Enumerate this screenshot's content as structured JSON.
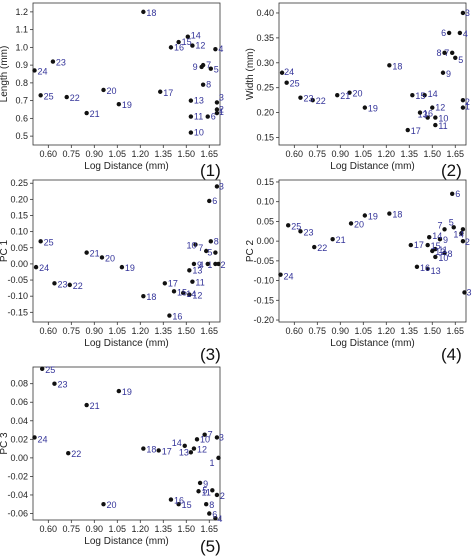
{
  "colors": {
    "point": "#111111",
    "point_label": "#333399",
    "axis": "#333333",
    "background": "#ffffff"
  },
  "chart_data": [
    {
      "type": "scatter",
      "panel": "(1)",
      "xlabel": "Log Distance (mm)",
      "ylabel": "Length (mm)",
      "xlim": [
        0.5,
        1.72
      ],
      "ylim": [
        0.45,
        1.25
      ],
      "grid": false,
      "xticks": [
        "0.60",
        "0.75",
        "0.90",
        "1.05",
        "1.20",
        "1.35",
        "1.50",
        "1.65"
      ],
      "yticks": [
        "0.5",
        "0.6",
        "0.7",
        "0.8",
        "0.9",
        "1.0",
        "1.1",
        "1.2"
      ],
      "points": [
        {
          "label": "1",
          "x": 1.7,
          "y": 0.63
        },
        {
          "label": "2",
          "x": 1.7,
          "y": 0.65
        },
        {
          "label": "3",
          "x": 1.7,
          "y": 0.69
        },
        {
          "label": "4",
          "x": 1.69,
          "y": 0.99
        },
        {
          "label": "5",
          "x": 1.66,
          "y": 0.88
        },
        {
          "label": "6",
          "x": 1.64,
          "y": 0.61
        },
        {
          "label": "7",
          "x": 1.61,
          "y": 0.9
        },
        {
          "label": "8",
          "x": 1.61,
          "y": 0.79
        },
        {
          "label": "9",
          "x": 1.6,
          "y": 0.89
        },
        {
          "label": "10",
          "x": 1.53,
          "y": 0.52
        },
        {
          "label": "11",
          "x": 1.53,
          "y": 0.61
        },
        {
          "label": "12",
          "x": 1.54,
          "y": 1.01
        },
        {
          "label": "13",
          "x": 1.53,
          "y": 0.7
        },
        {
          "label": "14",
          "x": 1.51,
          "y": 1.06
        },
        {
          "label": "15",
          "x": 1.45,
          "y": 1.03
        },
        {
          "label": "16",
          "x": 1.4,
          "y": 1.0
        },
        {
          "label": "17",
          "x": 1.33,
          "y": 0.75
        },
        {
          "label": "18",
          "x": 1.22,
          "y": 1.2
        },
        {
          "label": "19",
          "x": 1.06,
          "y": 0.68
        },
        {
          "label": "20",
          "x": 0.96,
          "y": 0.76
        },
        {
          "label": "21",
          "x": 0.85,
          "y": 0.63
        },
        {
          "label": "22",
          "x": 0.72,
          "y": 0.72
        },
        {
          "label": "23",
          "x": 0.63,
          "y": 0.92
        },
        {
          "label": "24",
          "x": 0.51,
          "y": 0.87
        },
        {
          "label": "25",
          "x": 0.55,
          "y": 0.73
        }
      ]
    },
    {
      "type": "scatter",
      "panel": "(2)",
      "xlabel": "Log Distance (mm)",
      "ylabel": "Width (mm)",
      "xlim": [
        0.5,
        1.72
      ],
      "ylim": [
        0.135,
        0.42
      ],
      "grid": false,
      "xticks": [
        "0.60",
        "0.75",
        "0.90",
        "1.05",
        "1.20",
        "1.35",
        "1.50",
        "1.65"
      ],
      "yticks": [
        "0.15",
        "0.20",
        "0.25",
        "0.30",
        "0.35",
        "0.40"
      ],
      "points": [
        {
          "label": "1",
          "x": 1.7,
          "y": 0.21
        },
        {
          "label": "2",
          "x": 1.7,
          "y": 0.225
        },
        {
          "label": "3",
          "x": 1.7,
          "y": 0.4
        },
        {
          "label": "4",
          "x": 1.68,
          "y": 0.36
        },
        {
          "label": "5",
          "x": 1.65,
          "y": 0.31
        },
        {
          "label": "6",
          "x": 1.61,
          "y": 0.36
        },
        {
          "label": "7",
          "x": 1.63,
          "y": 0.32
        },
        {
          "label": "8",
          "x": 1.58,
          "y": 0.32
        },
        {
          "label": "9",
          "x": 1.57,
          "y": 0.28
        },
        {
          "label": "10",
          "x": 1.52,
          "y": 0.19
        },
        {
          "label": "11",
          "x": 1.52,
          "y": 0.175
        },
        {
          "label": "12",
          "x": 1.5,
          "y": 0.21
        },
        {
          "label": "13",
          "x": 1.47,
          "y": 0.19
        },
        {
          "label": "14",
          "x": 1.45,
          "y": 0.235
        },
        {
          "label": "15",
          "x": 1.37,
          "y": 0.235
        },
        {
          "label": "16",
          "x": 1.42,
          "y": 0.2
        },
        {
          "label": "17",
          "x": 1.34,
          "y": 0.165
        },
        {
          "label": "18",
          "x": 1.22,
          "y": 0.295
        },
        {
          "label": "19",
          "x": 1.06,
          "y": 0.21
        },
        {
          "label": "20",
          "x": 0.96,
          "y": 0.24
        },
        {
          "label": "21",
          "x": 0.88,
          "y": 0.235
        },
        {
          "label": "22",
          "x": 0.72,
          "y": 0.225
        },
        {
          "label": "23",
          "x": 0.64,
          "y": 0.23
        },
        {
          "label": "24",
          "x": 0.52,
          "y": 0.28
        },
        {
          "label": "25",
          "x": 0.55,
          "y": 0.26
        }
      ]
    },
    {
      "type": "scatter",
      "panel": "(3)",
      "xlabel": "Log Distance (mm)",
      "ylabel": "PC 1",
      "xlim": [
        0.5,
        1.72
      ],
      "ylim": [
        -0.18,
        0.26
      ],
      "grid": false,
      "xticks": [
        "0.60",
        "0.75",
        "0.90",
        "1.05",
        "1.20",
        "1.35",
        "1.50",
        "1.65"
      ],
      "yticks": [
        "-0.15",
        "-0.10",
        "-0.05",
        "0.00",
        "0.05",
        "0.10",
        "0.15",
        "0.20",
        "0.25"
      ],
      "points": [
        {
          "label": "1",
          "x": 1.69,
          "y": 0.0
        },
        {
          "label": "2",
          "x": 1.71,
          "y": 0.0
        },
        {
          "label": "3",
          "x": 1.7,
          "y": 0.24
        },
        {
          "label": "4",
          "x": 1.64,
          "y": 0.0
        },
        {
          "label": "5",
          "x": 1.69,
          "y": 0.035
        },
        {
          "label": "6",
          "x": 1.65,
          "y": 0.195
        },
        {
          "label": "7",
          "x": 1.63,
          "y": 0.04
        },
        {
          "label": "8",
          "x": 1.66,
          "y": 0.07
        },
        {
          "label": "9",
          "x": 1.55,
          "y": 0.0
        },
        {
          "label": "10",
          "x": 1.56,
          "y": 0.06
        },
        {
          "label": "11",
          "x": 1.54,
          "y": -0.055
        },
        {
          "label": "12",
          "x": 1.52,
          "y": -0.095
        },
        {
          "label": "13",
          "x": 1.52,
          "y": -0.02
        },
        {
          "label": "14",
          "x": 1.48,
          "y": -0.09
        },
        {
          "label": "15",
          "x": 1.42,
          "y": -0.085
        },
        {
          "label": "16",
          "x": 1.39,
          "y": -0.16
        },
        {
          "label": "17",
          "x": 1.36,
          "y": -0.06
        },
        {
          "label": "18",
          "x": 1.22,
          "y": -0.1
        },
        {
          "label": "19",
          "x": 1.08,
          "y": -0.01
        },
        {
          "label": "20",
          "x": 0.95,
          "y": 0.02
        },
        {
          "label": "21",
          "x": 0.85,
          "y": 0.035
        },
        {
          "label": "22",
          "x": 0.74,
          "y": -0.065
        },
        {
          "label": "23",
          "x": 0.64,
          "y": -0.06
        },
        {
          "label": "24",
          "x": 0.52,
          "y": -0.01
        },
        {
          "label": "25",
          "x": 0.55,
          "y": 0.07
        }
      ]
    },
    {
      "type": "scatter",
      "panel": "(4)",
      "xlabel": "Log Distance (mm)",
      "ylabel": "PC 2",
      "xlim": [
        0.5,
        1.72
      ],
      "ylim": [
        -0.205,
        0.155
      ],
      "grid": false,
      "xticks": [
        "0.60",
        "0.75",
        "0.90",
        "1.05",
        "1.20",
        "1.35",
        "1.50",
        "1.65"
      ],
      "yticks": [
        "-0.20",
        "-0.15",
        "-0.10",
        "-0.05",
        "0.00",
        "0.05",
        "0.10",
        "0.15"
      ],
      "points": [
        {
          "label": "1",
          "x": 1.69,
          "y": 0.02
        },
        {
          "label": "2",
          "x": 1.7,
          "y": 0.0
        },
        {
          "label": "3",
          "x": 1.71,
          "y": -0.13
        },
        {
          "label": "4",
          "x": 1.7,
          "y": 0.03
        },
        {
          "label": "5",
          "x": 1.64,
          "y": 0.035
        },
        {
          "label": "6",
          "x": 1.63,
          "y": 0.12
        },
        {
          "label": "7",
          "x": 1.58,
          "y": 0.03
        },
        {
          "label": "8",
          "x": 1.58,
          "y": -0.03
        },
        {
          "label": "9",
          "x": 1.55,
          "y": 0.005
        },
        {
          "label": "10",
          "x": 1.52,
          "y": -0.04
        },
        {
          "label": "11",
          "x": 1.52,
          "y": -0.02
        },
        {
          "label": "12",
          "x": 1.5,
          "y": -0.025
        },
        {
          "label": "13",
          "x": 1.47,
          "y": -0.07
        },
        {
          "label": "14",
          "x": 1.48,
          "y": 0.01
        },
        {
          "label": "15",
          "x": 1.47,
          "y": -0.01
        },
        {
          "label": "16",
          "x": 1.4,
          "y": -0.065
        },
        {
          "label": "17",
          "x": 1.36,
          "y": -0.01
        },
        {
          "label": "18",
          "x": 1.22,
          "y": 0.07
        },
        {
          "label": "19",
          "x": 1.06,
          "y": 0.065
        },
        {
          "label": "20",
          "x": 0.97,
          "y": 0.045
        },
        {
          "label": "21",
          "x": 0.85,
          "y": 0.005
        },
        {
          "label": "22",
          "x": 0.73,
          "y": -0.015
        },
        {
          "label": "23",
          "x": 0.64,
          "y": 0.025
        },
        {
          "label": "24",
          "x": 0.51,
          "y": -0.085
        },
        {
          "label": "25",
          "x": 0.56,
          "y": 0.04
        }
      ]
    },
    {
      "type": "scatter",
      "panel": "(5)",
      "xlabel": "Log Distance (mm)",
      "ylabel": "PC 3",
      "xlim": [
        0.5,
        1.72
      ],
      "ylim": [
        -0.067,
        0.098
      ],
      "grid": false,
      "xticks": [
        "0.60",
        "0.75",
        "0.90",
        "1.05",
        "1.20",
        "1.35",
        "1.50",
        "1.65"
      ],
      "yticks": [
        "-0.06",
        "-0.04",
        "-0.02",
        "0.00",
        "0.02",
        "0.04",
        "0.06",
        "0.08"
      ],
      "points": [
        {
          "label": "1",
          "x": 1.71,
          "y": 0.0
        },
        {
          "label": "2",
          "x": 1.7,
          "y": -0.04
        },
        {
          "label": "3",
          "x": 1.7,
          "y": 0.022
        },
        {
          "label": "4",
          "x": 1.69,
          "y": -0.065
        },
        {
          "label": "5",
          "x": 1.67,
          "y": -0.035
        },
        {
          "label": "6",
          "x": 1.65,
          "y": -0.06
        },
        {
          "label": "7",
          "x": 1.62,
          "y": 0.025
        },
        {
          "label": "8",
          "x": 1.63,
          "y": -0.05
        },
        {
          "label": "9",
          "x": 1.59,
          "y": -0.027
        },
        {
          "label": "10",
          "x": 1.57,
          "y": 0.02
        },
        {
          "label": "11",
          "x": 1.58,
          "y": -0.036
        },
        {
          "label": "12",
          "x": 1.55,
          "y": 0.01
        },
        {
          "label": "13",
          "x": 1.53,
          "y": 0.006
        },
        {
          "label": "14",
          "x": 1.49,
          "y": 0.013
        },
        {
          "label": "15",
          "x": 1.45,
          "y": -0.05
        },
        {
          "label": "16",
          "x": 1.4,
          "y": -0.045
        },
        {
          "label": "17",
          "x": 1.32,
          "y": 0.008
        },
        {
          "label": "18",
          "x": 1.22,
          "y": 0.01
        },
        {
          "label": "19",
          "x": 1.06,
          "y": 0.072
        },
        {
          "label": "20",
          "x": 0.96,
          "y": -0.05
        },
        {
          "label": "21",
          "x": 0.85,
          "y": 0.057
        },
        {
          "label": "22",
          "x": 0.73,
          "y": 0.005
        },
        {
          "label": "23",
          "x": 0.64,
          "y": 0.08
        },
        {
          "label": "24",
          "x": 0.51,
          "y": 0.022
        },
        {
          "label": "25",
          "x": 0.56,
          "y": 0.096
        }
      ]
    }
  ]
}
